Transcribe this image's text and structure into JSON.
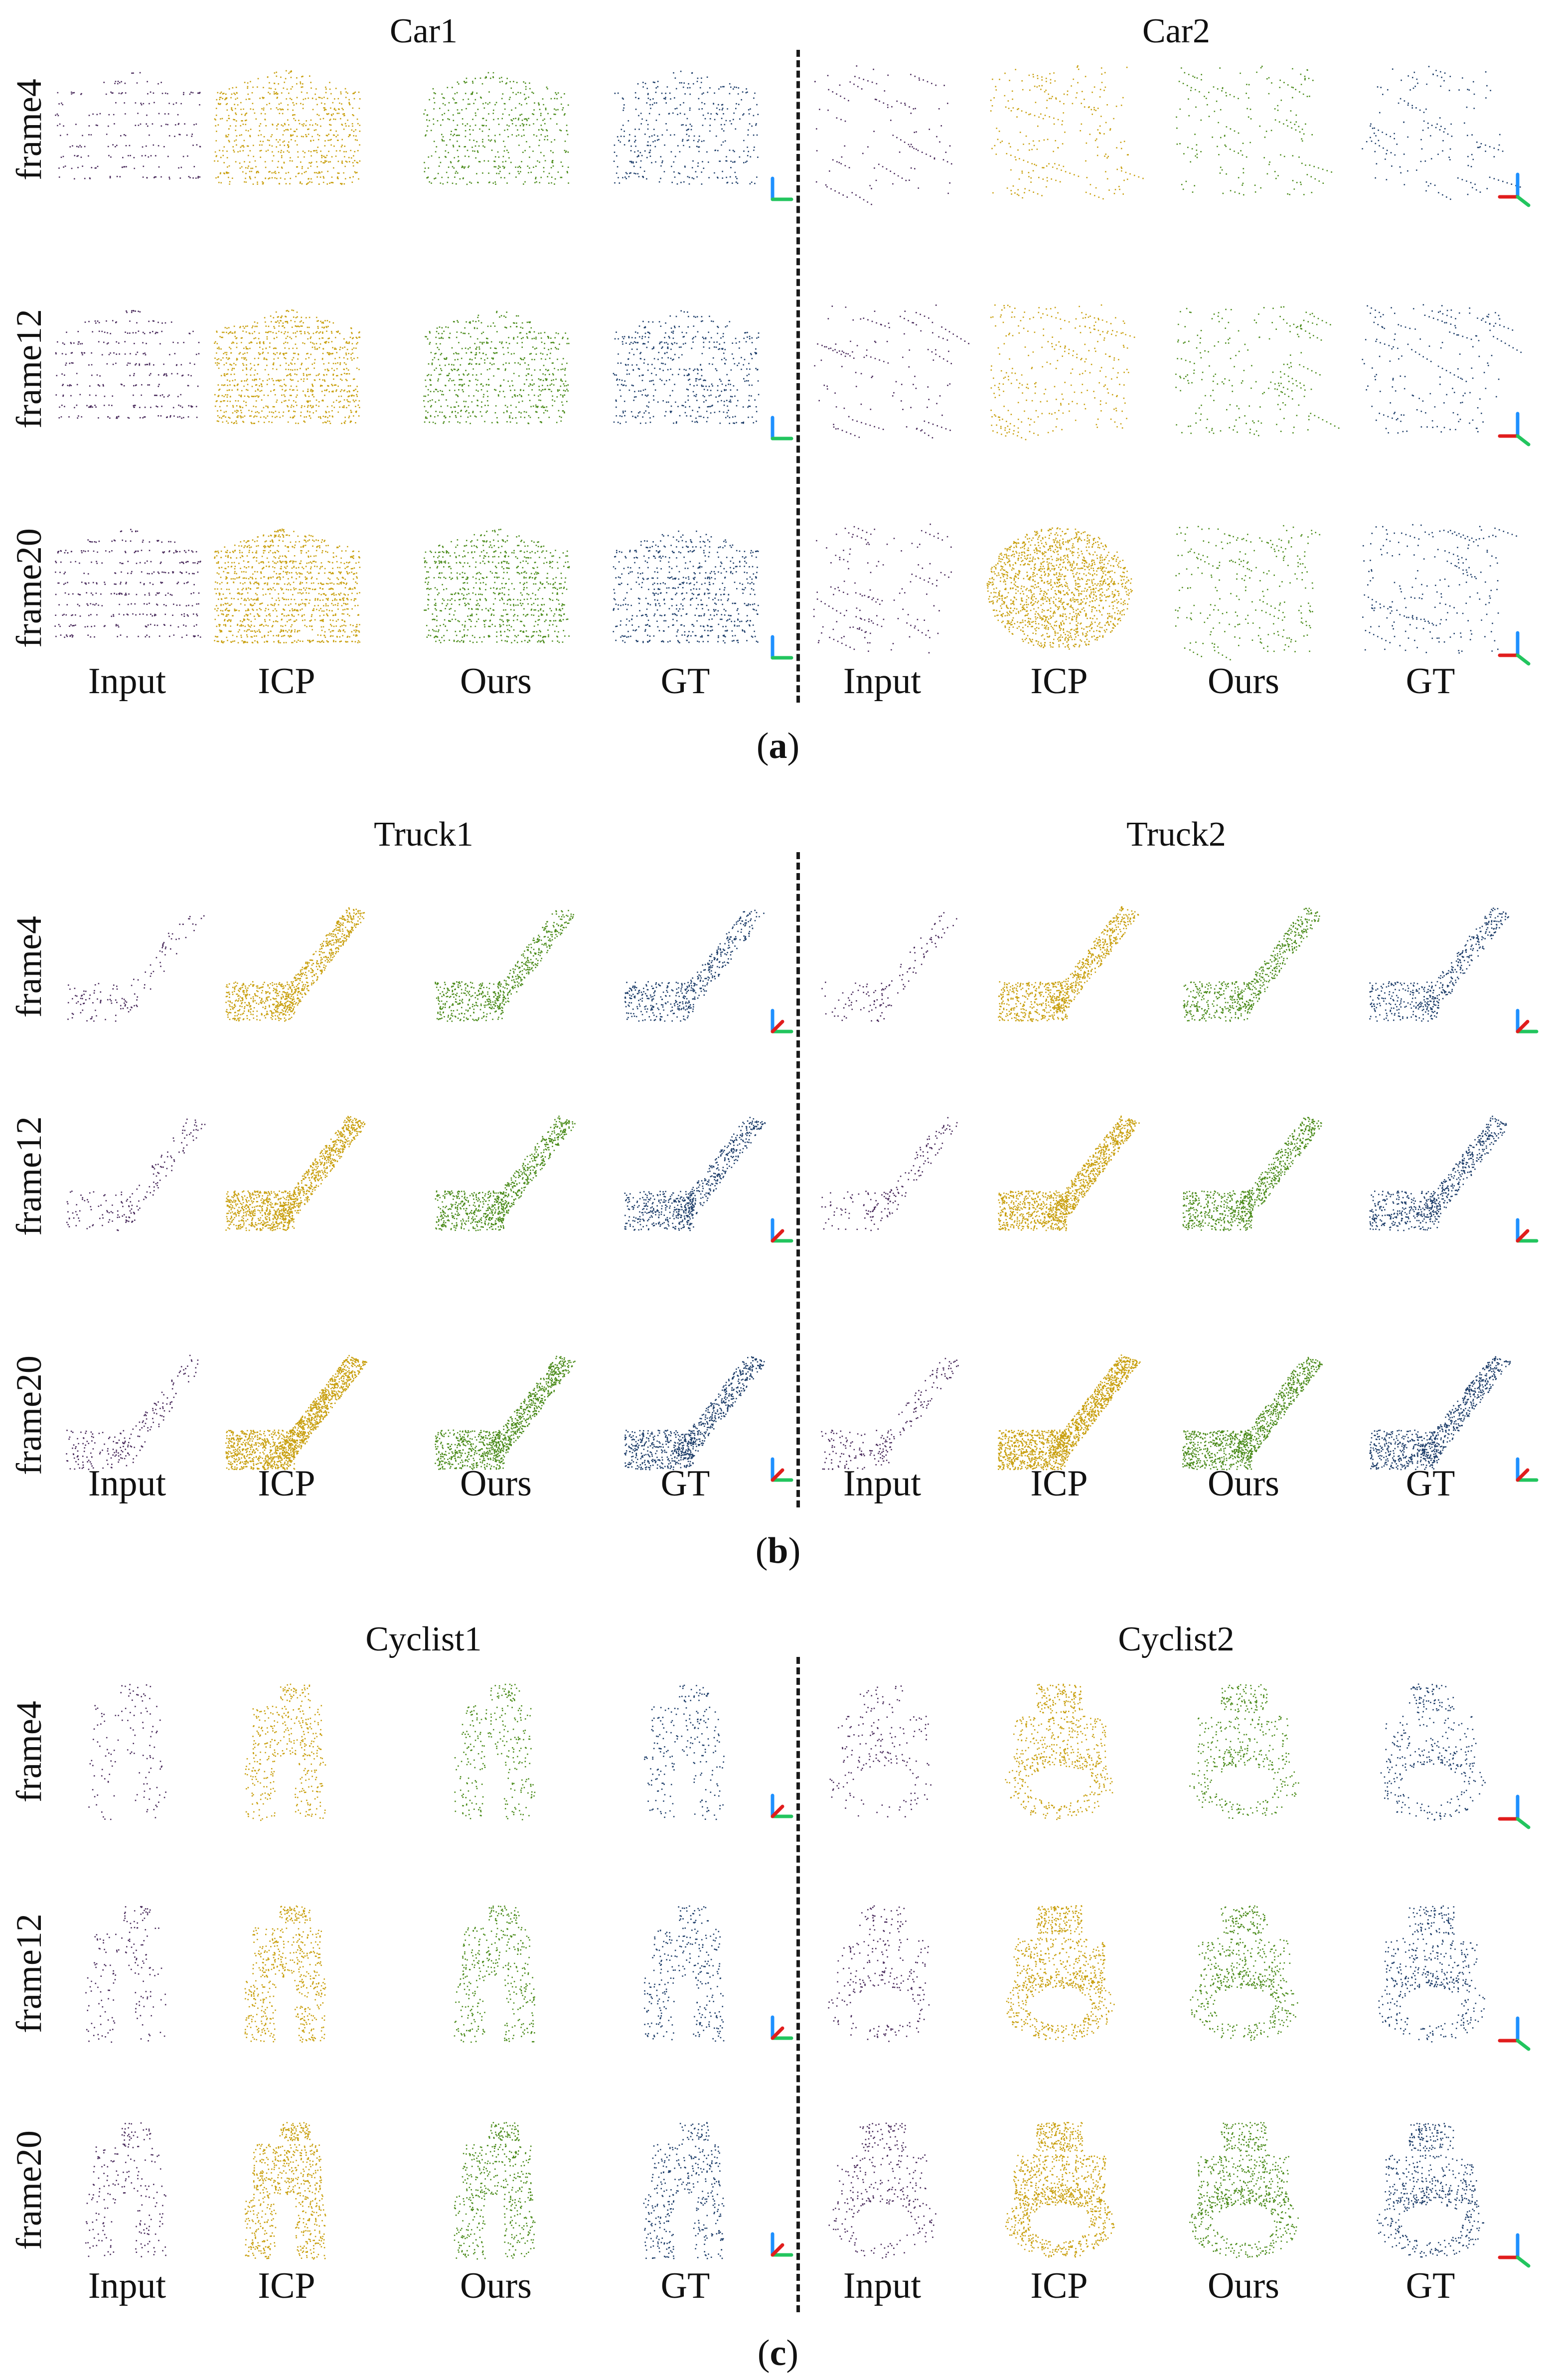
{
  "figure": {
    "panels": [
      {
        "caption_label": "a",
        "groups": [
          {
            "title": "Car1",
            "axes_style": "up"
          },
          {
            "title": "Car2",
            "axes_style": "red"
          }
        ]
      },
      {
        "caption_label": "b",
        "groups": [
          {
            "title": "Truck1",
            "axes_style": "diag"
          },
          {
            "title": "Truck2",
            "axes_style": "diag"
          }
        ]
      },
      {
        "caption_label": "c",
        "groups": [
          {
            "title": "Cyclist1",
            "axes_style": "diag"
          },
          {
            "title": "Cyclist2",
            "axes_style": "red"
          }
        ]
      }
    ],
    "row_labels": [
      "frame4",
      "frame12",
      "frame20"
    ],
    "column_labels": [
      "Input",
      "ICP",
      "Ours",
      "GT"
    ],
    "colors": {
      "Input": "#4a2b5c",
      "ICP": "#c9a010",
      "Ours": "#4c8c1c",
      "GT": "#1f3f6b",
      "axis_x": "#e11d1d",
      "axis_y": "#22c55e",
      "axis_z": "#1e90ff"
    }
  }
}
